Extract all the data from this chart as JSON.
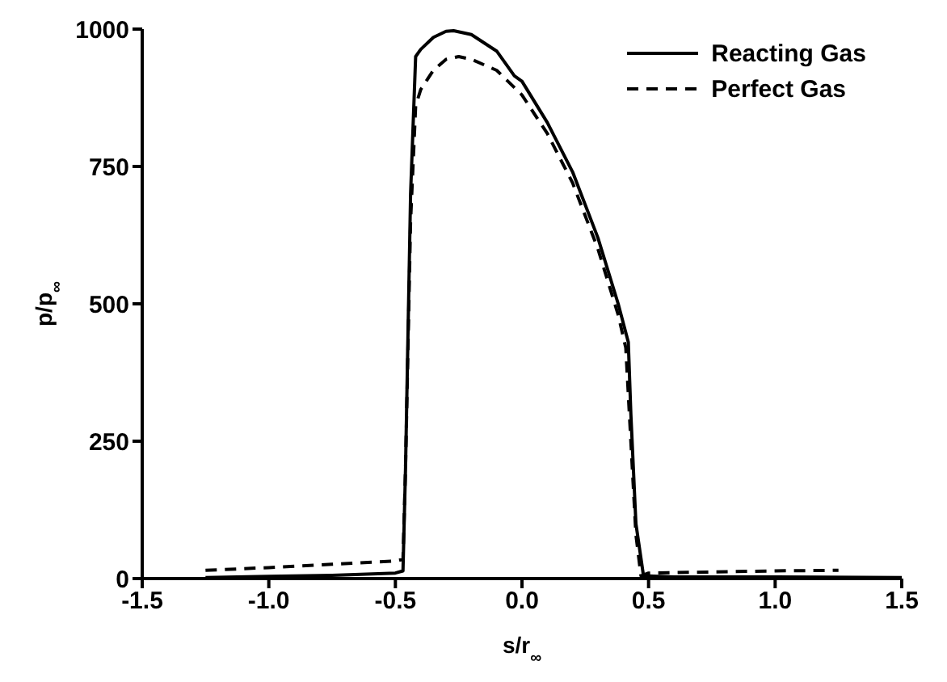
{
  "chart_data": {
    "type": "line",
    "xlabel": "s/r$_{∞}$",
    "ylabel": "p/p$_{∞}$",
    "xlim": [
      -1.5,
      1.5
    ],
    "xticks": [
      {
        "value": -1.5,
        "label": "-1.5"
      },
      {
        "value": -1,
        "label": "-1.0"
      },
      {
        "value": -0.5,
        "label": "-0.5"
      },
      {
        "value": 0,
        "label": "0.0"
      },
      {
        "value": 0.5,
        "label": "0.5"
      },
      {
        "value": 1,
        "label": "1.0"
      },
      {
        "value": 1.5,
        "label": "1.5"
      }
    ],
    "ylim": [
      0,
      1000
    ],
    "yticks": [
      0,
      250,
      500,
      750,
      1000
    ],
    "legend": "top right",
    "marker": "none",
    "series": [
      {
        "name": "Reacting Gas",
        "color": "#000000",
        "line_style": "solid",
        "x": [
          -1.25,
          -1.0,
          -0.75,
          -0.5,
          -0.47,
          -0.46,
          -0.44,
          -0.42,
          -0.4,
          -0.35,
          -0.3,
          -0.27,
          -0.2,
          -0.1,
          -0.03,
          0.0,
          0.1,
          0.2,
          0.3,
          0.38,
          0.42,
          0.43,
          0.45,
          0.48,
          0.6,
          1.0,
          1.5
        ],
        "values": [
          2,
          4,
          6,
          10,
          14,
          200,
          700,
          950,
          963,
          985,
          996,
          997,
          990,
          960,
          915,
          905,
          830,
          740,
          620,
          500,
          430,
          300,
          100,
          5,
          3,
          3,
          2
        ]
      },
      {
        "name": "Perfect Gas",
        "color": "#000000",
        "line_style": "dashed",
        "x": [
          -1.25,
          -1.0,
          -0.75,
          -0.5,
          -0.47,
          -0.46,
          -0.44,
          -0.42,
          -0.4,
          -0.35,
          -0.3,
          -0.25,
          -0.2,
          -0.1,
          0.0,
          0.1,
          0.2,
          0.3,
          0.38,
          0.41,
          0.43,
          0.45,
          0.47,
          0.5,
          0.75,
          1.0,
          1.25
        ],
        "values": [
          15,
          20,
          26,
          32,
          35,
          200,
          650,
          860,
          890,
          925,
          945,
          950,
          945,
          925,
          880,
          810,
          720,
          600,
          480,
          420,
          250,
          80,
          5,
          10,
          12,
          14,
          15
        ]
      }
    ]
  }
}
